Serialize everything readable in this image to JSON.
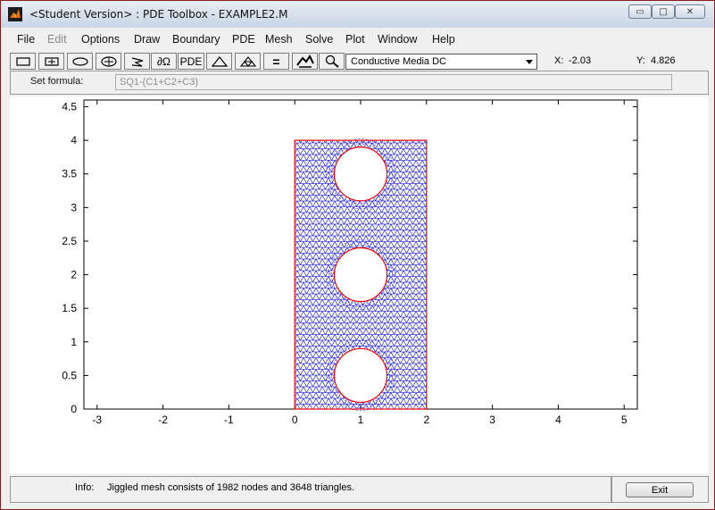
{
  "window": {
    "title": "<Student Version> : PDE Toolbox - EXAMPLE2.M",
    "min_glyph": "▭",
    "max_glyph": "□",
    "close_glyph": "✕"
  },
  "menu": [
    {
      "label": "File",
      "enabled": true
    },
    {
      "label": "Edit",
      "enabled": false
    },
    {
      "label": "Options",
      "enabled": true
    },
    {
      "label": "Draw",
      "enabled": true
    },
    {
      "label": "Boundary",
      "enabled": true
    },
    {
      "label": "PDE",
      "enabled": true
    },
    {
      "label": "Mesh",
      "enabled": true
    },
    {
      "label": "Solve",
      "enabled": true
    },
    {
      "label": "Plot",
      "enabled": true
    },
    {
      "label": "Window",
      "enabled": true
    },
    {
      "label": "Help",
      "enabled": true
    }
  ],
  "toolbar": {
    "buttons": [
      {
        "name": "draw-rectangle-icon",
        "glyph": ""
      },
      {
        "name": "draw-centered-rectangle-icon",
        "glyph": ""
      },
      {
        "name": "draw-ellipse-icon",
        "glyph": ""
      },
      {
        "name": "draw-centered-ellipse-icon",
        "glyph": ""
      },
      {
        "name": "draw-polygon-icon",
        "glyph": ""
      },
      {
        "name": "boundary-mode-icon",
        "glyph": "∂Ω"
      },
      {
        "name": "pde-spec-icon",
        "glyph": "PDE"
      },
      {
        "name": "init-mesh-icon",
        "glyph": "△"
      },
      {
        "name": "refine-mesh-icon",
        "glyph": ""
      },
      {
        "name": "solve-icon",
        "glyph": "="
      },
      {
        "name": "plot-icon",
        "glyph": ""
      },
      {
        "name": "zoom-icon",
        "glyph": ""
      }
    ],
    "app_mode": "Conductive Media DC",
    "x_label": "X:",
    "x_value": "-2.03",
    "y_label": "Y:",
    "y_value": "4.826"
  },
  "formula": {
    "label": "Set formula:",
    "value": "SQ1-(C1+C2+C3)"
  },
  "status": {
    "info_label": "Info:",
    "info_text": "Jiggled mesh consists of 1982 nodes and 3648 triangles.",
    "exit_label": "Exit"
  },
  "colors": {
    "mesh": "#0000e6",
    "boundary": "#ff0000",
    "axes": "#000000"
  },
  "chart_data": {
    "type": "mesh",
    "xlim": [
      -3.2,
      5.2
    ],
    "ylim": [
      0,
      4.6
    ],
    "xticks": [
      -3,
      -2,
      -1,
      0,
      1,
      2,
      3,
      4,
      5
    ],
    "yticks": [
      0,
      0.5,
      1,
      1.5,
      2,
      2.5,
      3,
      3.5,
      4,
      4.5
    ],
    "xticklabels": [
      "-3",
      "-2",
      "-1",
      "0",
      "1",
      "2",
      "3",
      "4",
      "5"
    ],
    "yticklabels": [
      "0",
      "0.5",
      "1",
      "1.5",
      "2",
      "2.5",
      "3",
      "3.5",
      "4",
      "4.5"
    ],
    "rectangle": {
      "xmin": 0,
      "xmax": 2,
      "ymin": 0,
      "ymax": 4
    },
    "holes": [
      {
        "cx": 1,
        "cy": 0.5,
        "r": 0.4
      },
      {
        "cx": 1,
        "cy": 2,
        "r": 0.4
      },
      {
        "cx": 1,
        "cy": 3.5,
        "r": 0.4
      }
    ],
    "nodes": 1982,
    "triangles": 3648
  }
}
